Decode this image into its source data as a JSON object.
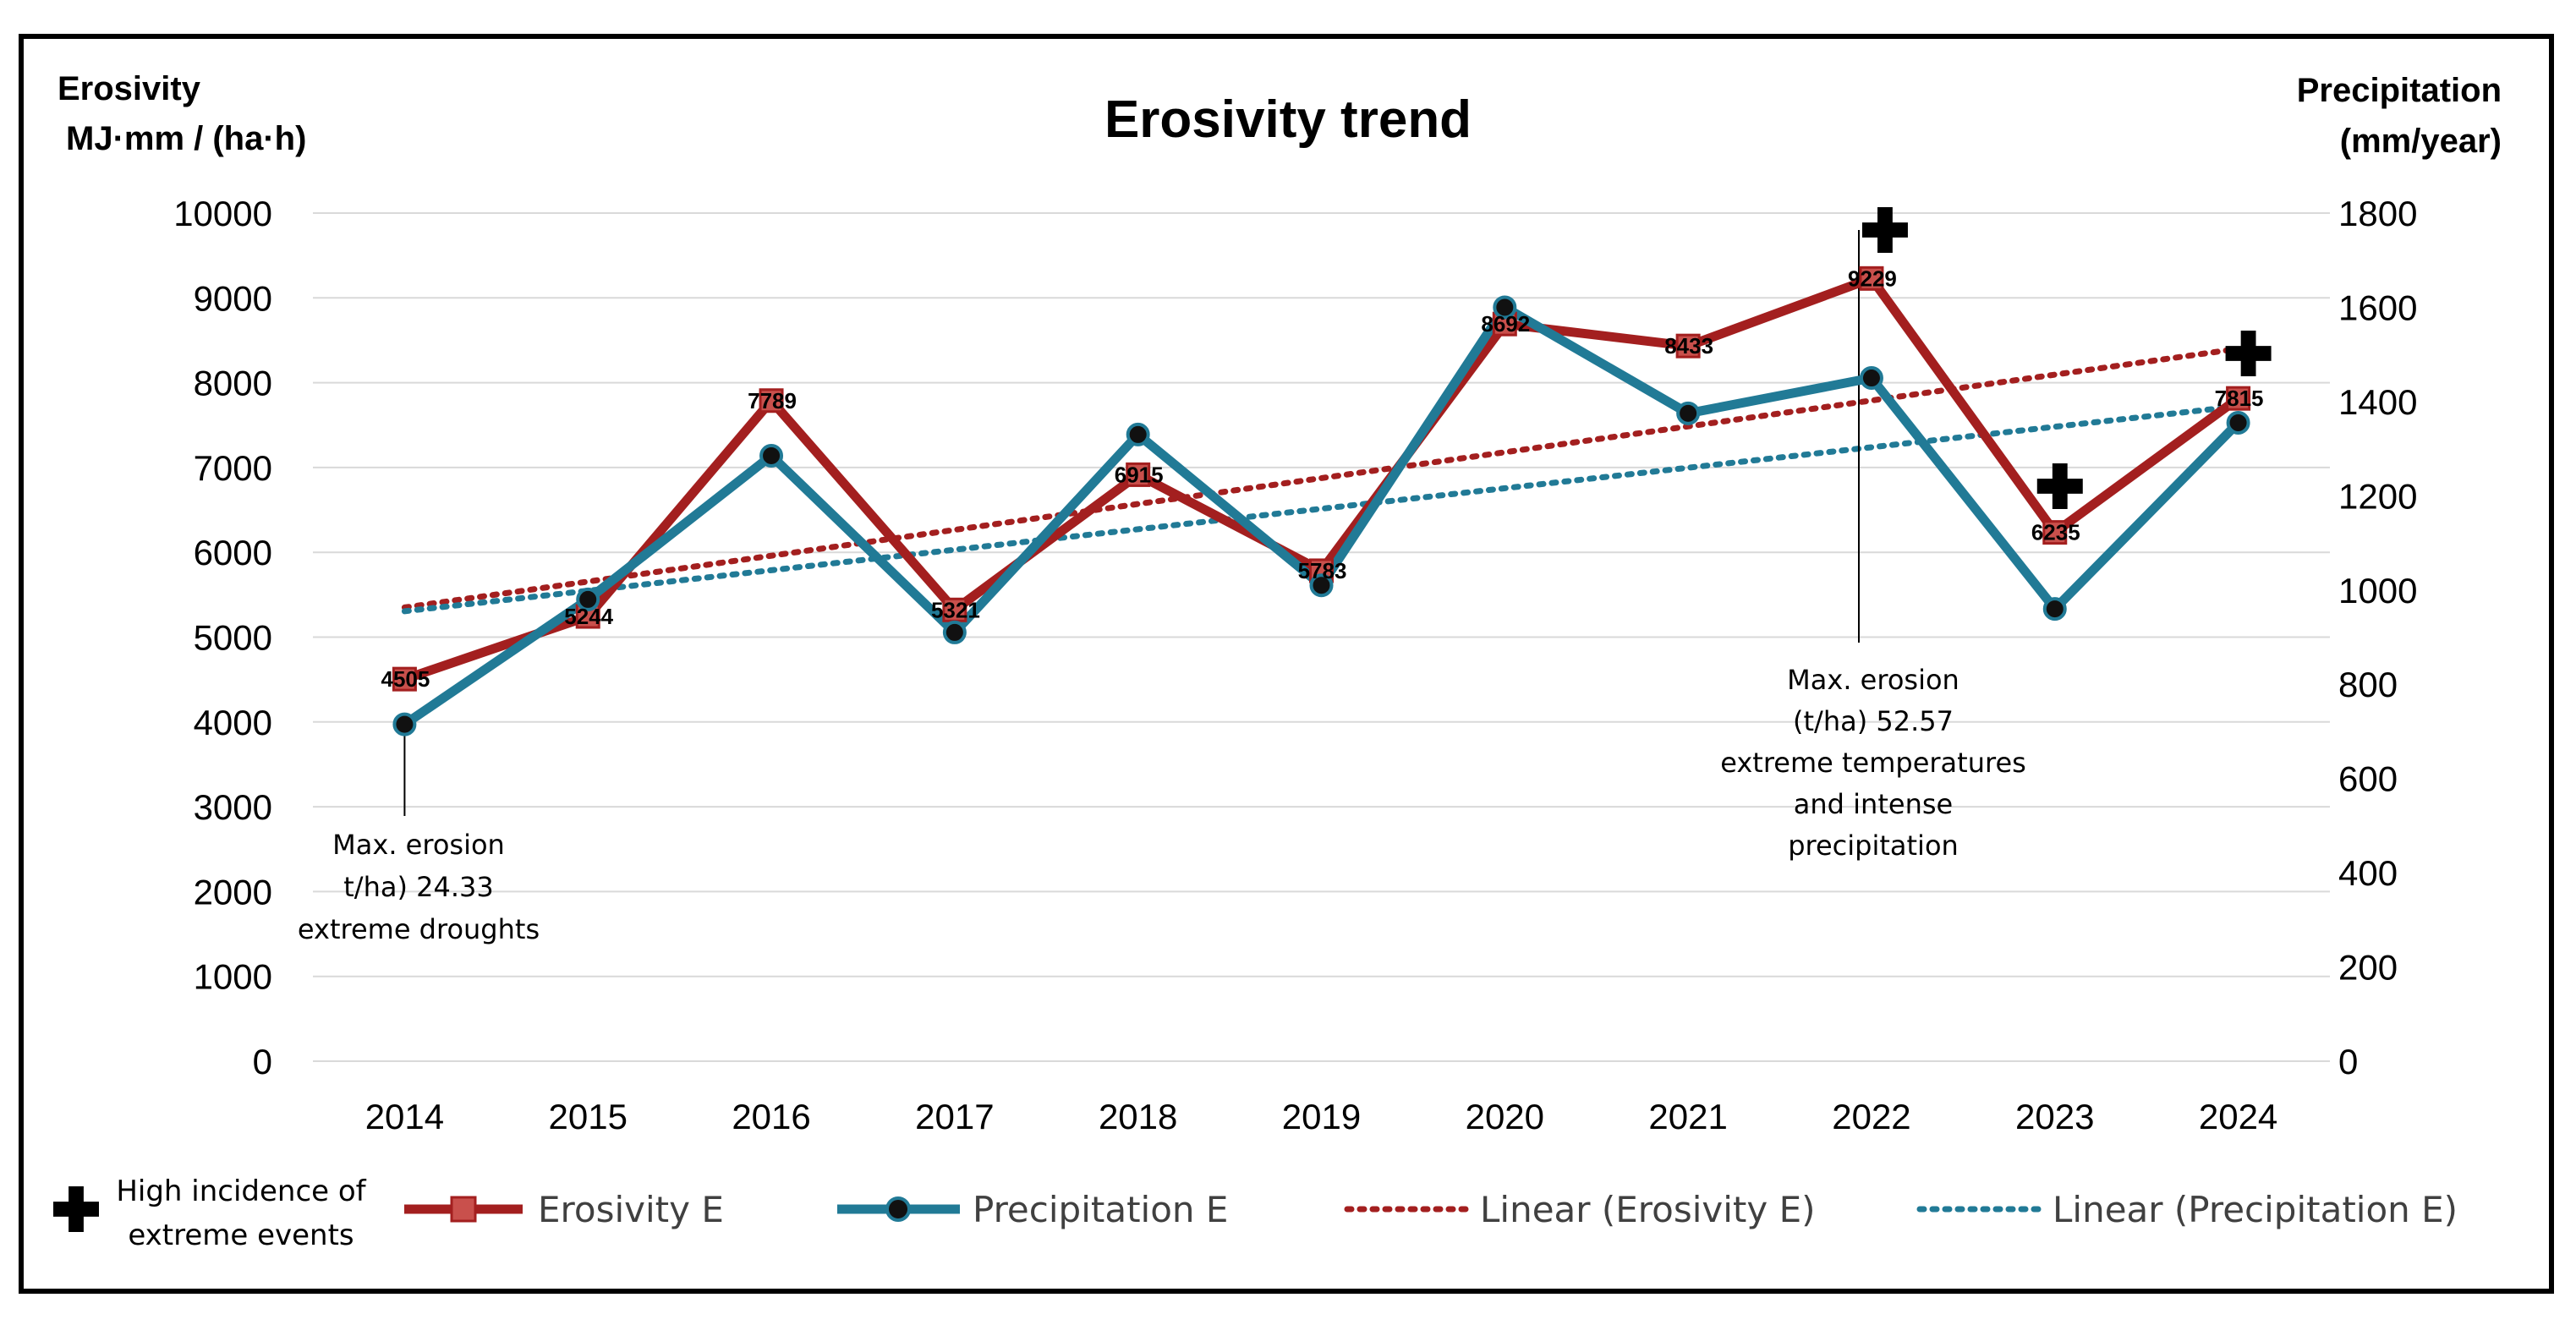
{
  "colors": {
    "erosivity": "#A31F1F",
    "erosivity_marker": "#C9504C",
    "precipitation": "#217A96",
    "grid": "#D9D9D9",
    "text": "#000000"
  },
  "chart_data": {
    "type": "line",
    "title": "Erosivity trend",
    "y_left_label_line1": "Erosivity",
    "y_left_label_line2": "MJ·mm / (ha·h)",
    "y_right_label_line1": "Precipitation",
    "y_right_label_line2": "(mm/year)",
    "categories": [
      "2014",
      "2015",
      "2016",
      "2017",
      "2018",
      "2019",
      "2020",
      "2021",
      "2022",
      "2023",
      "2024"
    ],
    "ylim_left": [
      0,
      10000
    ],
    "yticks_left": [
      0,
      1000,
      2000,
      3000,
      4000,
      5000,
      6000,
      7000,
      8000,
      9000,
      10000
    ],
    "ylim_right": [
      0,
      1800
    ],
    "yticks_right": [
      0,
      200,
      400,
      600,
      800,
      1000,
      1200,
      1400,
      1600,
      1800
    ],
    "grid": true,
    "series": [
      {
        "name": "Erosivity E",
        "axis": "left",
        "values": [
          4505,
          5244,
          7789,
          5321,
          6915,
          5783,
          8692,
          8433,
          9229,
          6235,
          7815
        ],
        "data_labels": [
          "4505",
          "5244",
          "7789",
          "5321",
          "6915",
          "5783",
          "8692",
          "8433",
          "9229",
          "6235",
          "7815"
        ],
        "marker": "square"
      },
      {
        "name": "Precipitation E",
        "axis": "right",
        "values": [
          715,
          980,
          1285,
          910,
          1330,
          1010,
          1600,
          1375,
          1450,
          960,
          1355
        ],
        "marker": "circle"
      }
    ],
    "trendlines": [
      {
        "name": "Linear (Erosivity E)",
        "of": "Erosivity E",
        "start": 5350,
        "end": 8400
      },
      {
        "name": "Linear (Precipitation E)",
        "of": "Precipitation E",
        "start": 955,
        "end": 1390
      }
    ],
    "extreme_event_years": [
      "2022",
      "2023",
      "2024"
    ],
    "annotations": [
      {
        "year": "2014",
        "lines": [
          "Max. erosion",
          "t/ha) 24.33",
          "extreme droughts"
        ]
      },
      {
        "year": "2022",
        "lines": [
          "Max. erosion",
          "(t/ha) 52.57",
          "extreme temperatures",
          "and intense",
          "precipitation"
        ]
      }
    ],
    "legend": {
      "placement": "bottom",
      "extreme_label_line1": "High incidence of",
      "extreme_label_line2": "extreme events",
      "items": [
        "Erosivity E",
        "Precipitation E",
        "Linear (Erosivity E)",
        "Linear (Precipitation E)"
      ]
    }
  }
}
